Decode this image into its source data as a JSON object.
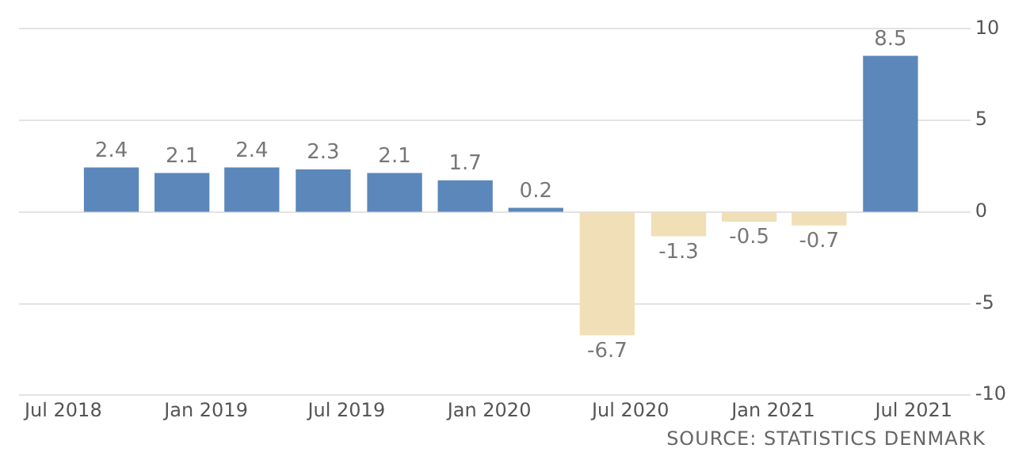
{
  "chart_data": {
    "type": "bar",
    "x": [
      "2018-09",
      "2018-12",
      "2019-03",
      "2019-06",
      "2019-09",
      "2019-12",
      "2020-03",
      "2020-06",
      "2020-09",
      "2020-12",
      "2021-03",
      "2021-06"
    ],
    "values": [
      2.4,
      2.1,
      2.4,
      2.3,
      2.1,
      1.7,
      0.2,
      -6.7,
      -1.3,
      -0.5,
      -0.7,
      8.5
    ],
    "colors": [
      "#5b87ba",
      "#5b87ba",
      "#5b87ba",
      "#5b87ba",
      "#5b87ba",
      "#5b87ba",
      "#5b87ba",
      "#f1dfb8",
      "#f1dfb8",
      "#f1dfb8",
      "#f1dfb8",
      "#5b87ba"
    ],
    "xlim": [
      "2018-05-05",
      "2021-09-12"
    ],
    "xticks": [
      {
        "value": "2018-07",
        "label": "Jul 2018"
      },
      {
        "value": "2019-01",
        "label": "Jan 2019"
      },
      {
        "value": "2019-07",
        "label": "Jul 2019"
      },
      {
        "value": "2020-01",
        "label": "Jan 2020"
      },
      {
        "value": "2020-07",
        "label": "Jul 2020"
      },
      {
        "value": "2021-01",
        "label": "Jan 2021"
      },
      {
        "value": "2021-07",
        "label": "Jul 2021"
      }
    ],
    "ylim": [
      -10,
      10
    ],
    "yticks": [
      -10,
      -5,
      0,
      5,
      10
    ],
    "grid": "y",
    "data_labels": true,
    "annotations": [
      "SOURCE: STATISTICS DENMARK"
    ]
  }
}
